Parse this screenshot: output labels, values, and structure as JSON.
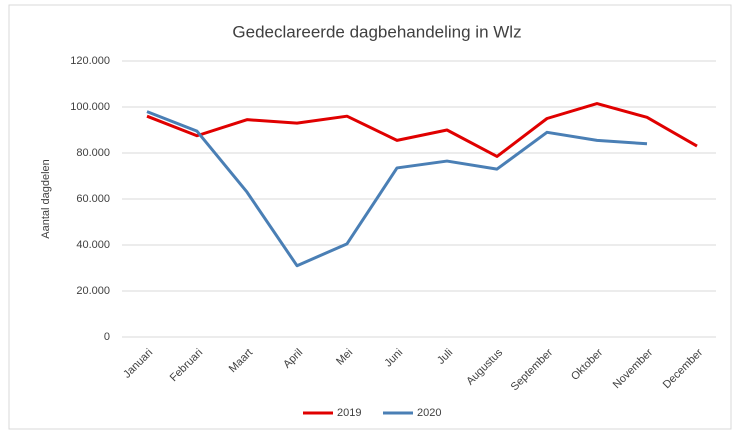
{
  "chart_data": {
    "type": "line",
    "title": "Gedeclareerde dagbehandeling in Wlz",
    "y_label": "Aantal dagdelen",
    "categories": [
      "Januari",
      "Februari",
      "Maart",
      "April",
      "Mei",
      "Juni",
      "Juli",
      "Augustus",
      "September",
      "Oktober",
      "November",
      "December"
    ],
    "series": [
      {
        "name": "2019",
        "color": "#e00000",
        "values": [
          96000,
          87500,
          94500,
          93000,
          96000,
          85500,
          90000,
          78500,
          95000,
          101500,
          95500,
          83000
        ]
      },
      {
        "name": "2020",
        "color": "#4a7fb5",
        "values": [
          98000,
          89500,
          63000,
          31000,
          40500,
          73500,
          76500,
          73000,
          89000,
          85500,
          84000,
          null
        ]
      }
    ],
    "ylim": [
      0,
      120000
    ],
    "yticks": [
      0,
      {
        "value": 20000,
        "label": "20.000"
      },
      {
        "value": 40000,
        "label": "40.000"
      },
      {
        "value": 60000,
        "label": "60.000"
      },
      {
        "value": 80000,
        "label": "80.000"
      },
      {
        "value": 100000,
        "label": "100.000"
      },
      {
        "value": 120000,
        "label": "120.000"
      }
    ],
    "grid": true,
    "legend": "bottom"
  }
}
